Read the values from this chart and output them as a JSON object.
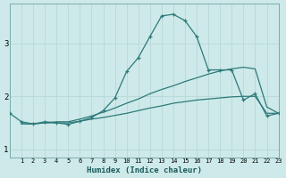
{
  "xlabel": "Humidex (Indice chaleur)",
  "bg_color": "#cee9e9",
  "grid_color": "#b8d8d8",
  "line_color": "#2d7a7a",
  "xmin": 0,
  "xmax": 23,
  "ymin": 0.85,
  "ymax": 3.75,
  "yticks": [
    1,
    2,
    3
  ],
  "xticks": [
    1,
    2,
    3,
    4,
    5,
    6,
    7,
    8,
    9,
    10,
    11,
    12,
    13,
    14,
    15,
    16,
    17,
    18,
    19,
    20,
    21,
    22,
    23
  ],
  "line1_x": [
    0,
    1,
    2,
    3,
    4,
    5,
    6,
    7,
    8,
    9,
    10,
    11,
    12,
    13,
    14,
    15,
    16,
    17,
    18,
    19,
    20,
    21,
    22,
    23
  ],
  "line1_y": [
    1.68,
    1.52,
    1.48,
    1.52,
    1.5,
    1.47,
    1.53,
    1.6,
    1.73,
    1.97,
    2.47,
    2.73,
    3.13,
    3.52,
    3.55,
    3.43,
    3.13,
    2.5,
    2.5,
    2.5,
    1.93,
    2.05,
    1.63,
    1.68
  ],
  "line2_x": [
    1,
    2,
    3,
    4,
    5,
    6,
    7,
    8,
    9,
    10,
    11,
    12,
    13,
    14,
    15,
    16,
    17,
    18,
    19,
    20,
    21,
    22,
    23
  ],
  "line2_y": [
    1.48,
    1.48,
    1.5,
    1.52,
    1.52,
    1.57,
    1.63,
    1.7,
    1.78,
    1.87,
    1.95,
    2.05,
    2.13,
    2.2,
    2.28,
    2.35,
    2.42,
    2.48,
    2.52,
    2.55,
    2.52,
    1.8,
    1.68
  ],
  "line3_x": [
    1,
    2,
    3,
    4,
    5,
    6,
    7,
    8,
    9,
    10,
    11,
    12,
    13,
    14,
    15,
    16,
    17,
    18,
    19,
    20,
    21,
    22,
    23
  ],
  "line3_y": [
    1.48,
    1.48,
    1.5,
    1.5,
    1.5,
    1.53,
    1.57,
    1.6,
    1.64,
    1.68,
    1.73,
    1.78,
    1.82,
    1.87,
    1.9,
    1.93,
    1.95,
    1.97,
    1.99,
    2.0,
    2.0,
    1.68,
    1.68
  ]
}
